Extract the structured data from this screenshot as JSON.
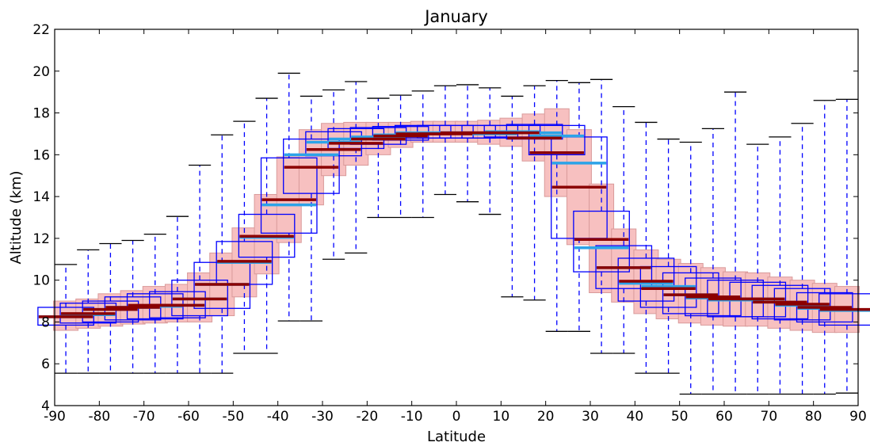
{
  "chart_data": {
    "type": "box",
    "title": "January",
    "xlabel": "Latitude",
    "ylabel": "Altitude (km)",
    "xlim": [
      -90,
      90
    ],
    "ylim": [
      4,
      22
    ],
    "xticks": [
      -90,
      -80,
      -70,
      -60,
      -50,
      -40,
      -30,
      -20,
      -10,
      0,
      10,
      20,
      30,
      40,
      50,
      60,
      70,
      80,
      90
    ],
    "yticks": [
      4,
      6,
      8,
      10,
      12,
      14,
      16,
      18,
      20,
      22
    ],
    "grid": false,
    "colors": {
      "box_outline": "#0000ff",
      "whisker": "#0000ff",
      "pink_box": "#f7c0c0",
      "pink_edge": "#d99a9a",
      "dark_median": "#8b0000",
      "light_median": "#2ca3e8",
      "cap": "#000000"
    },
    "series": [
      {
        "name": "blue",
        "description": "",
        "x": [
          -87.5,
          -82.5,
          -77.5,
          -72.5,
          -67.5,
          -62.5,
          -57.5,
          -52.5,
          -47.5,
          -42.5,
          -37.5,
          -32.5,
          -27.5,
          -22.5,
          -17.5,
          -12.5,
          -7.5,
          -2.5,
          2.5,
          7.5,
          12.5,
          17.5,
          22.5,
          27.5,
          32.5,
          37.5,
          42.5,
          47.5,
          52.5,
          57.5,
          62.5,
          67.5,
          72.5,
          77.5,
          82.5,
          87.5
        ],
        "q1": [
          7.85,
          7.95,
          8.0,
          8.1,
          8.15,
          8.2,
          8.3,
          8.65,
          9.8,
          11.1,
          12.25,
          14.15,
          15.95,
          16.3,
          16.5,
          16.7,
          16.8,
          16.8,
          16.8,
          16.8,
          16.85,
          16.75,
          16.0,
          12.0,
          10.4,
          9.6,
          9.0,
          8.7,
          8.4,
          8.3,
          8.25,
          8.25,
          8.15,
          8.1,
          8.0,
          7.85
        ],
        "median": [
          8.25,
          8.35,
          8.6,
          8.7,
          8.75,
          8.8,
          9.1,
          9.8,
          10.85,
          12.05,
          13.6,
          16.0,
          16.6,
          16.75,
          16.85,
          16.95,
          17.05,
          17.05,
          17.05,
          17.0,
          17.1,
          17.05,
          16.9,
          15.6,
          11.55,
          10.6,
          9.85,
          9.7,
          9.3,
          9.15,
          9.05,
          9.1,
          8.95,
          8.8,
          8.65,
          8.55
        ],
        "q3": [
          8.7,
          8.9,
          9.0,
          9.2,
          9.35,
          9.45,
          10.0,
          10.85,
          11.85,
          13.15,
          15.85,
          16.75,
          17.1,
          17.25,
          17.3,
          17.35,
          17.4,
          17.4,
          17.4,
          17.4,
          17.4,
          17.45,
          17.4,
          16.85,
          13.3,
          11.65,
          11.05,
          10.65,
          10.35,
          10.1,
          10.0,
          9.9,
          9.75,
          9.6,
          9.4,
          9.35
        ],
        "whisker_low": [
          5.55,
          5.55,
          5.55,
          5.55,
          5.55,
          5.55,
          5.55,
          5.55,
          6.5,
          6.5,
          8.05,
          8.05,
          11.0,
          11.3,
          13.0,
          13.0,
          13.0,
          14.1,
          13.75,
          13.15,
          9.2,
          9.05,
          7.55,
          7.55,
          6.5,
          6.5,
          5.55,
          5.55,
          4.55,
          4.55,
          4.55,
          4.55,
          4.55,
          4.55,
          4.55,
          4.6
        ],
        "whisker_high": [
          10.75,
          11.45,
          11.75,
          11.9,
          12.2,
          13.05,
          15.5,
          16.95,
          17.6,
          18.7,
          19.9,
          18.8,
          19.1,
          19.5,
          18.7,
          18.85,
          19.05,
          19.3,
          19.35,
          19.2,
          18.8,
          19.3,
          19.55,
          19.45,
          19.6,
          18.3,
          17.55,
          16.75,
          16.6,
          17.25,
          19.0,
          16.5,
          16.85,
          17.5,
          18.6,
          18.65
        ]
      },
      {
        "name": "pink",
        "description": "",
        "x": [
          -87.5,
          -82.5,
          -77.5,
          -72.5,
          -67.5,
          -62.5,
          -57.5,
          -52.5,
          -47.5,
          -42.5,
          -37.5,
          -32.5,
          -27.5,
          -22.5,
          -17.5,
          -12.5,
          -7.5,
          -2.5,
          2.5,
          7.5,
          12.5,
          17.5,
          22.5,
          27.5,
          32.5,
          37.5,
          42.5,
          47.5,
          52.5,
          57.5,
          62.5,
          67.5,
          72.5,
          77.5,
          82.5,
          87.5
        ],
        "q1": [
          7.6,
          7.7,
          7.8,
          7.9,
          7.95,
          8.0,
          8.0,
          8.3,
          9.2,
          10.3,
          11.8,
          13.6,
          15.0,
          15.5,
          16.0,
          16.35,
          16.6,
          16.6,
          16.6,
          16.5,
          16.4,
          15.7,
          14.0,
          11.7,
          9.4,
          8.95,
          8.4,
          8.15,
          7.95,
          7.85,
          7.8,
          7.8,
          7.7,
          7.6,
          7.5,
          7.5
        ],
        "median": [
          8.25,
          8.4,
          8.6,
          8.7,
          8.8,
          8.8,
          9.1,
          9.8,
          10.9,
          12.1,
          13.85,
          15.4,
          16.25,
          16.55,
          16.75,
          16.9,
          17.0,
          17.0,
          17.05,
          17.05,
          17.05,
          16.8,
          16.1,
          14.45,
          11.95,
          10.6,
          9.95,
          9.6,
          9.3,
          9.2,
          9.1,
          9.1,
          8.95,
          8.85,
          8.7,
          8.6
        ],
        "q3": [
          9.0,
          9.1,
          9.35,
          9.5,
          9.7,
          9.8,
          10.35,
          11.3,
          12.5,
          14.1,
          15.9,
          17.2,
          17.5,
          17.55,
          17.55,
          17.55,
          17.6,
          17.6,
          17.6,
          17.65,
          17.75,
          17.95,
          18.2,
          17.2,
          14.6,
          12.45,
          11.45,
          11.0,
          10.8,
          10.6,
          10.4,
          10.35,
          10.15,
          10.0,
          9.85,
          9.7
        ]
      }
    ]
  }
}
